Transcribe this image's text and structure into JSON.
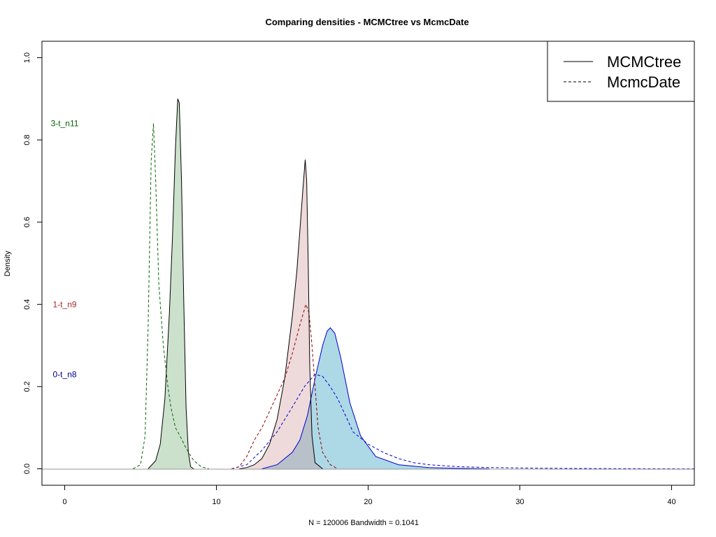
{
  "chart_data": {
    "type": "area",
    "title": "Comparing densities - MCMCtree vs McmcDate",
    "xlabel": "N = 120006   Bandwidth = 0.1041",
    "ylabel": "Density",
    "xlim": [
      -1.5,
      41.5
    ],
    "ylim": [
      -0.04,
      1.04
    ],
    "x_ticks": [
      0,
      10,
      20,
      30,
      40
    ],
    "y_ticks": [
      0.0,
      0.2,
      0.4,
      0.6,
      0.8,
      1.0
    ],
    "y_tick_labels": [
      "0.0",
      "0.2",
      "0.4",
      "0.6",
      "0.8",
      "1.0"
    ],
    "grid": false,
    "legend": {
      "position": "top-right",
      "entries": [
        {
          "label": "MCMCtree",
          "line_style": "solid"
        },
        {
          "label": "McmcDate",
          "line_style": "dashed"
        }
      ]
    },
    "annotations": [
      {
        "text": "3-t_n11",
        "x": 0.0,
        "y": 0.84,
        "color": "#006400"
      },
      {
        "text": "1-t_n9",
        "x": 0.0,
        "y": 0.4,
        "color": "#a52a2a"
      },
      {
        "text": "0-t_n8",
        "x": 0.0,
        "y": 0.23,
        "color": "#00008b"
      }
    ],
    "series": [
      {
        "method": "MCMCtree",
        "node": "0-t_n8",
        "style": "solid",
        "stroke": "#0000cd",
        "fill": "#add8e6",
        "points": [
          [
            13,
            0
          ],
          [
            14,
            0.01
          ],
          [
            15,
            0.04
          ],
          [
            15.5,
            0.07
          ],
          [
            16,
            0.13
          ],
          [
            16.5,
            0.22
          ],
          [
            17,
            0.3
          ],
          [
            17.3,
            0.335
          ],
          [
            17.5,
            0.343
          ],
          [
            17.8,
            0.33
          ],
          [
            18.2,
            0.27
          ],
          [
            18.8,
            0.16
          ],
          [
            19.5,
            0.08
          ],
          [
            20.5,
            0.03
          ],
          [
            22,
            0.01
          ],
          [
            24,
            0.003
          ],
          [
            26,
            0.001
          ],
          [
            28,
            0
          ]
        ]
      },
      {
        "method": "MCMCtree",
        "node": "1-t_n9",
        "style": "solid",
        "stroke": "#000000",
        "fill": "rgba(205,150,150,0.35)",
        "points": [
          [
            11.5,
            0
          ],
          [
            12,
            0.003
          ],
          [
            12.5,
            0.01
          ],
          [
            13,
            0.025
          ],
          [
            13.5,
            0.06
          ],
          [
            14,
            0.12
          ],
          [
            14.5,
            0.22
          ],
          [
            15,
            0.37
          ],
          [
            15.3,
            0.48
          ],
          [
            15.5,
            0.58
          ],
          [
            15.7,
            0.68
          ],
          [
            15.85,
            0.752
          ],
          [
            15.95,
            0.7
          ],
          [
            16.05,
            0.5
          ],
          [
            16.15,
            0.25
          ],
          [
            16.3,
            0.08
          ],
          [
            16.5,
            0.015
          ],
          [
            17,
            0
          ]
        ]
      },
      {
        "method": "MCMCtree",
        "node": "3-t_n11",
        "style": "solid",
        "stroke": "#000000",
        "fill": "rgba(143,188,143,0.45)",
        "points": [
          [
            5.5,
            0
          ],
          [
            6,
            0.02
          ],
          [
            6.3,
            0.06
          ],
          [
            6.6,
            0.17
          ],
          [
            6.9,
            0.38
          ],
          [
            7.1,
            0.56
          ],
          [
            7.3,
            0.78
          ],
          [
            7.45,
            0.9
          ],
          [
            7.55,
            0.89
          ],
          [
            7.7,
            0.7
          ],
          [
            7.85,
            0.4
          ],
          [
            8.0,
            0.15
          ],
          [
            8.15,
            0.04
          ],
          [
            8.3,
            0.005
          ],
          [
            8.5,
            0
          ]
        ]
      },
      {
        "method": "McmcDate",
        "node": "0-t_n8",
        "style": "dashed",
        "stroke": "#0000cd",
        "points": [
          [
            11,
            0
          ],
          [
            12,
            0.01
          ],
          [
            13,
            0.045
          ],
          [
            14,
            0.09
          ],
          [
            15,
            0.15
          ],
          [
            15.8,
            0.2
          ],
          [
            16.5,
            0.23
          ],
          [
            17,
            0.225
          ],
          [
            17.5,
            0.2
          ],
          [
            18,
            0.17
          ],
          [
            18.5,
            0.13
          ],
          [
            19,
            0.09
          ],
          [
            20,
            0.06
          ],
          [
            21,
            0.04
          ],
          [
            22,
            0.025
          ],
          [
            23,
            0.015
          ],
          [
            24,
            0.01
          ],
          [
            26,
            0.005
          ],
          [
            28,
            0.003
          ],
          [
            30,
            0.002
          ],
          [
            33,
            0.001
          ],
          [
            36,
            0.0005
          ],
          [
            41.5,
            0
          ]
        ]
      },
      {
        "method": "McmcDate",
        "node": "1-t_n9",
        "style": "dashed",
        "stroke": "#8b0000",
        "points": [
          [
            11,
            0
          ],
          [
            11.5,
            0.005
          ],
          [
            12,
            0.03
          ],
          [
            12.5,
            0.07
          ],
          [
            13,
            0.1
          ],
          [
            13.5,
            0.14
          ],
          [
            14,
            0.18
          ],
          [
            14.5,
            0.22
          ],
          [
            15,
            0.28
          ],
          [
            15.5,
            0.35
          ],
          [
            15.9,
            0.4
          ],
          [
            16.1,
            0.38
          ],
          [
            16.3,
            0.3
          ],
          [
            16.5,
            0.2
          ],
          [
            16.7,
            0.1
          ],
          [
            17,
            0.04
          ],
          [
            17.5,
            0.01
          ],
          [
            18,
            0
          ]
        ]
      },
      {
        "method": "McmcDate",
        "node": "3-t_n11",
        "style": "dashed",
        "stroke": "#006400",
        "points": [
          [
            4.5,
            0
          ],
          [
            5,
            0.01
          ],
          [
            5.3,
            0.08
          ],
          [
            5.5,
            0.35
          ],
          [
            5.7,
            0.75
          ],
          [
            5.85,
            0.84
          ],
          [
            6,
            0.7
          ],
          [
            6.2,
            0.45
          ],
          [
            6.5,
            0.3
          ],
          [
            6.8,
            0.2
          ],
          [
            7,
            0.15
          ],
          [
            7.3,
            0.1
          ],
          [
            7.6,
            0.08
          ],
          [
            8,
            0.05
          ],
          [
            8.5,
            0.02
          ],
          [
            9,
            0.005
          ],
          [
            9.5,
            0
          ]
        ]
      }
    ]
  }
}
